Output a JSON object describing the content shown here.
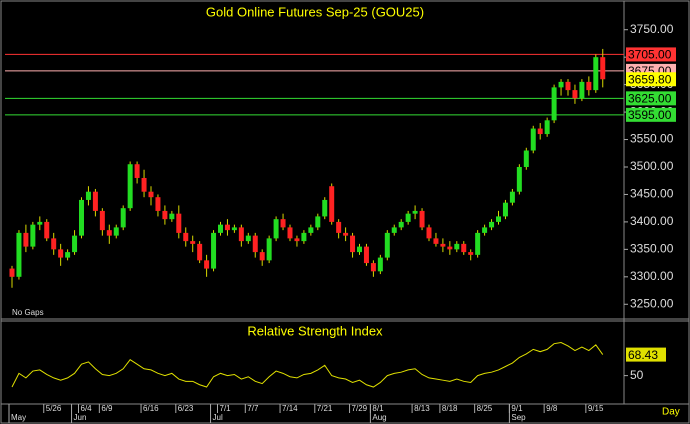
{
  "chart_data": {
    "type": "candlestick",
    "title": "Gold Online Futures Sep-25 (GOU25)",
    "annotation": "No Gaps",
    "x_axis_label": "Day",
    "up_color": "#22dd22",
    "down_color": "#ff2222",
    "wick_color": "#d8d800",
    "categories": [
      null,
      null,
      null,
      null,
      null,
      "5/26",
      null,
      null,
      null,
      null,
      "6/4",
      null,
      null,
      "6/9",
      null,
      null,
      null,
      null,
      null,
      "6/16",
      null,
      null,
      null,
      null,
      "6/23",
      null,
      null,
      null,
      null,
      null,
      "7/1",
      null,
      null,
      null,
      "7/7",
      null,
      null,
      null,
      null,
      "7/14",
      null,
      null,
      null,
      null,
      "7/21",
      null,
      null,
      null,
      null,
      "7/29",
      null,
      null,
      "8/1",
      null,
      null,
      null,
      null,
      null,
      "8/13",
      null,
      null,
      null,
      "8/18",
      null,
      null,
      null,
      null,
      "8/25",
      null,
      null,
      null,
      null,
      "9/1",
      null,
      null,
      null,
      null,
      "9/8",
      null,
      null,
      null,
      null,
      null,
      "9/15",
      null,
      null
    ],
    "months": [
      {
        "label": "May",
        "index": 0
      },
      {
        "label": "Jun",
        "index": 9
      },
      {
        "label": "Jul",
        "index": 29
      },
      {
        "label": "Aug",
        "index": 52
      },
      {
        "label": "Sep",
        "index": 72
      }
    ],
    "open": [
      3315,
      3300,
      3380,
      3355,
      3395,
      3400,
      3370,
      3350,
      3335,
      3345,
      3375,
      3440,
      3455,
      3420,
      3385,
      3375,
      3390,
      3425,
      3505,
      3480,
      3455,
      3445,
      3420,
      3405,
      3415,
      3380,
      3365,
      3360,
      3330,
      3315,
      3380,
      3395,
      3385,
      3390,
      3365,
      3375,
      3345,
      3330,
      3370,
      3405,
      3390,
      3370,
      3365,
      3380,
      3390,
      3410,
      3465,
      3400,
      3380,
      3375,
      3345,
      3355,
      3325,
      3310,
      3335,
      3380,
      3390,
      3400,
      3415,
      3420,
      3390,
      3370,
      3360,
      3355,
      3350,
      3360,
      3345,
      3340,
      3380,
      3390,
      3400,
      3410,
      3435,
      3455,
      3500,
      3530,
      3570,
      3560,
      3585,
      3645,
      3655,
      3640,
      3625,
      3655,
      3640,
      3700
    ],
    "high": [
      3320,
      3385,
      3395,
      3400,
      3410,
      3405,
      3380,
      3360,
      3350,
      3385,
      3445,
      3465,
      3460,
      3425,
      3395,
      3395,
      3430,
      3510,
      3510,
      3495,
      3465,
      3450,
      3430,
      3420,
      3430,
      3390,
      3375,
      3365,
      3340,
      3385,
      3400,
      3405,
      3395,
      3395,
      3380,
      3380,
      3350,
      3375,
      3410,
      3415,
      3395,
      3375,
      3385,
      3395,
      3415,
      3445,
      3470,
      3405,
      3390,
      3380,
      3360,
      3360,
      3330,
      3340,
      3385,
      3395,
      3405,
      3420,
      3430,
      3425,
      3395,
      3380,
      3370,
      3365,
      3365,
      3365,
      3350,
      3385,
      3395,
      3405,
      3420,
      3440,
      3460,
      3505,
      3535,
      3575,
      3580,
      3590,
      3650,
      3660,
      3660,
      3650,
      3660,
      3665,
      3705,
      3715
    ],
    "low": [
      3280,
      3295,
      3345,
      3350,
      3385,
      3365,
      3340,
      3320,
      3330,
      3340,
      3370,
      3430,
      3410,
      3375,
      3360,
      3370,
      3385,
      3420,
      3470,
      3445,
      3430,
      3410,
      3395,
      3400,
      3370,
      3355,
      3345,
      3325,
      3300,
      3310,
      3375,
      3375,
      3380,
      3355,
      3360,
      3335,
      3320,
      3325,
      3365,
      3385,
      3365,
      3355,
      3360,
      3375,
      3385,
      3405,
      3395,
      3370,
      3365,
      3335,
      3340,
      3320,
      3300,
      3305,
      3330,
      3375,
      3385,
      3395,
      3405,
      3385,
      3365,
      3355,
      3345,
      3340,
      3345,
      3340,
      3330,
      3335,
      3375,
      3385,
      3395,
      3405,
      3430,
      3450,
      3495,
      3525,
      3550,
      3555,
      3580,
      3630,
      3630,
      3615,
      3620,
      3630,
      3635,
      3645
    ],
    "close": [
      3300,
      3380,
      3355,
      3395,
      3400,
      3370,
      3350,
      3335,
      3345,
      3375,
      3440,
      3455,
      3420,
      3385,
      3375,
      3390,
      3425,
      3505,
      3480,
      3455,
      3445,
      3420,
      3405,
      3415,
      3380,
      3365,
      3360,
      3330,
      3315,
      3380,
      3395,
      3385,
      3390,
      3365,
      3375,
      3345,
      3330,
      3370,
      3405,
      3390,
      3370,
      3365,
      3380,
      3390,
      3410,
      3440,
      3400,
      3380,
      3375,
      3345,
      3355,
      3325,
      3310,
      3335,
      3380,
      3390,
      3400,
      3415,
      3420,
      3390,
      3370,
      3360,
      3355,
      3350,
      3360,
      3345,
      3340,
      3380,
      3390,
      3400,
      3410,
      3435,
      3455,
      3500,
      3530,
      3570,
      3560,
      3585,
      3645,
      3655,
      3640,
      3625,
      3655,
      3640,
      3700,
      3659.8
    ],
    "last_close_label": "3659.80",
    "last_close_color": "#ffff00",
    "ylim": [
      3225,
      3795
    ],
    "yticks": [
      {
        "value": 3250,
        "label": "3250.00"
      },
      {
        "value": 3300,
        "label": "3300.00"
      },
      {
        "value": 3350,
        "label": "3350.00"
      },
      {
        "value": 3400,
        "label": "3400.00"
      },
      {
        "value": 3450,
        "label": "3450.00"
      },
      {
        "value": 3500,
        "label": "3500.00"
      },
      {
        "value": 3550,
        "label": "3550.00"
      },
      {
        "value": 3600,
        "label": "3600.00"
      },
      {
        "value": 3650,
        "label": "3650.00"
      },
      {
        "value": 3700,
        "label": "3700.00"
      },
      {
        "value": 3750,
        "label": "3750.00"
      }
    ],
    "levels": [
      {
        "value": 3705,
        "label": "3705.00",
        "color": "#ff3333"
      },
      {
        "value": 3675,
        "label": "3675.00",
        "color": "#ffb0b0"
      },
      {
        "value": 3625,
        "label": "3625.00",
        "color": "#33dd33"
      },
      {
        "value": 3595,
        "label": "3595.00",
        "color": "#33dd33"
      }
    ],
    "rsi": {
      "title": "Relative Strength Index",
      "color": "#e0e000",
      "ylim": [
        26,
        97
      ],
      "yticks": [
        50
      ],
      "values": [
        40,
        52,
        48,
        54,
        55,
        51,
        48,
        46,
        48,
        52,
        60,
        62,
        56,
        51,
        50,
        52,
        56,
        64,
        60,
        56,
        55,
        52,
        50,
        52,
        47,
        45,
        45,
        42,
        40,
        49,
        52,
        50,
        51,
        47,
        49,
        45,
        43,
        49,
        54,
        52,
        49,
        48,
        51,
        52,
        55,
        59,
        50,
        48,
        47,
        44,
        46,
        42,
        40,
        44,
        50,
        52,
        53,
        55,
        56,
        51,
        48,
        47,
        46,
        45,
        47,
        45,
        44,
        50,
        52,
        53,
        55,
        58,
        61,
        66,
        69,
        73,
        71,
        73,
        78,
        79,
        76,
        72,
        75,
        72,
        77,
        68.43
      ]
    }
  }
}
